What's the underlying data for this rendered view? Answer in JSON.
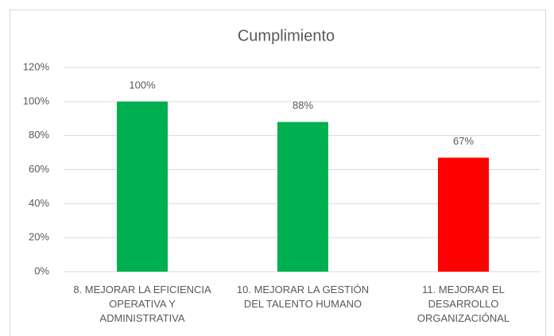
{
  "chart_data": {
    "type": "bar",
    "title": "Cumplimiento",
    "categories": [
      "8. MEJORAR LA EFICIENCIA OPERATIVA Y ADMINISTRATIVA",
      "10. MEJORAR LA GESTIÓN DEL TALENTO HUMANO",
      "11. MEJORAR EL DESARROLLO ORGANIZACIÓNAL"
    ],
    "values": [
      100,
      88,
      67
    ],
    "value_labels": [
      "100%",
      "88%",
      "67%"
    ],
    "colors": [
      "#00b050",
      "#00b050",
      "#ff0000"
    ],
    "ylim": [
      0,
      120
    ],
    "yticks": [
      {
        "value": 0,
        "label": "0%"
      },
      {
        "value": 20,
        "label": "20%"
      },
      {
        "value": 40,
        "label": "40%"
      },
      {
        "value": 60,
        "label": "60%"
      },
      {
        "value": 80,
        "label": "80%"
      },
      {
        "value": 100,
        "label": "100%"
      },
      {
        "value": 120,
        "label": "120%"
      }
    ],
    "grid": true
  }
}
